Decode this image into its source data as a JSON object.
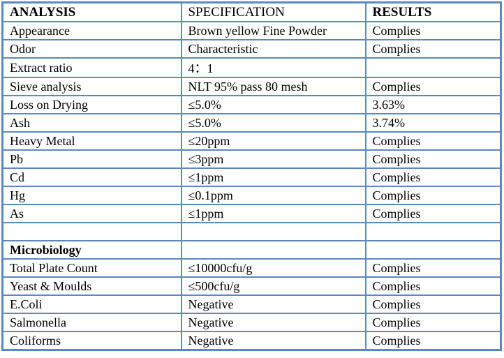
{
  "colors": {
    "border": "#5c88be",
    "text": "#000000",
    "background": "#ffffff"
  },
  "table": {
    "title": "analysis-specification-results-table",
    "columns": [
      {
        "label": "ANALYSIS"
      },
      {
        "label": "SPECIFICATION"
      },
      {
        "label": "RESULTS"
      }
    ],
    "rows": [
      {
        "analysis": "Appearance",
        "specification": "Brown yellow Fine Powder",
        "results": "Complies"
      },
      {
        "analysis": "Odor",
        "specification": "Characteristic",
        "results": "Complies"
      },
      {
        "analysis": "Extract ratio",
        "specification": "4：1",
        "results": ""
      },
      {
        "analysis": "Sieve analysis",
        "specification": "NLT 95% pass 80 mesh",
        "results": "Complies"
      },
      {
        "analysis": "Loss on Drying",
        "specification": "≤5.0%",
        "results": "3.63%"
      },
      {
        "analysis": "Ash",
        "specification": "≤5.0%",
        "results": "3.74%"
      },
      {
        "analysis": "Heavy Metal",
        "specification": "≤20ppm",
        "results": "Complies"
      },
      {
        "analysis": "Pb",
        "specification": "≤3ppm",
        "results": "Complies"
      },
      {
        "analysis": "Cd",
        "specification": "≤1ppm",
        "results": "Complies"
      },
      {
        "analysis": "Hg",
        "specification": "≤0.1ppm",
        "results": "Complies"
      },
      {
        "analysis": "As",
        "specification": "≤1ppm",
        "results": "Complies"
      },
      {
        "analysis": "",
        "specification": "",
        "results": ""
      },
      {
        "analysis": "Microbiology",
        "specification": "",
        "results": "",
        "section_header": true
      },
      {
        "analysis": "Total Plate Count",
        "specification": "≤10000cfu/g",
        "results": "Complies"
      },
      {
        "analysis": "Yeast & Moulds",
        "specification": "≤500cfu/g",
        "results": "Complies"
      },
      {
        "analysis": "E.Coli",
        "specification": "Negative",
        "results": "Complies"
      },
      {
        "analysis": "Salmonella",
        "specification": "Negative",
        "results": "Complies"
      },
      {
        "analysis": "Coliforms",
        "specification": "Negative",
        "results": "Complies"
      }
    ]
  }
}
